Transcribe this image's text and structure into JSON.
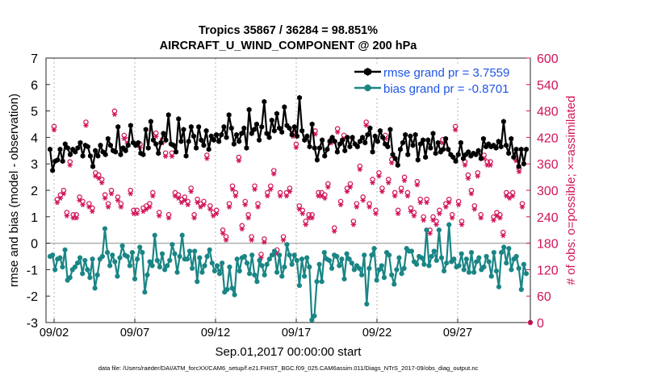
{
  "chart_data": {
    "type": "line",
    "title": "Tropics 35867 / 36284 = 98.851%",
    "subtitle": "AIRCRAFT_U_WIND_COMPONENT @ 200 hPa",
    "xlabel": "Sep.01,2017 00:00:00 start",
    "ylabel": "rmse and bias (model - observation)",
    "ylabel_right": "# of obs: o=possible; ×=assimilated",
    "footnote": "data file: /Users/raeder/DAI/ATM_forcXX/CAM6_setup/f.e21.FHIST_BGC.f09_025.CAM6assim.011/Diags_NTrS_2017-09/obs_diag_output.nc",
    "xlim": [
      1.5,
      31.5
    ],
    "ylim": [
      -3,
      7
    ],
    "ylim_right": [
      0,
      600
    ],
    "yticks": [
      -3,
      -2,
      -1,
      0,
      1,
      2,
      3,
      4,
      5,
      6,
      7
    ],
    "yticks_right": [
      0,
      60,
      120,
      180,
      240,
      300,
      360,
      420,
      480,
      540,
      600
    ],
    "xticks": [
      2,
      7,
      12,
      17,
      22,
      27
    ],
    "xtick_labels": [
      "09/02",
      "09/07",
      "09/12",
      "09/17",
      "09/22",
      "09/27"
    ],
    "zero_line": 0,
    "legend": [
      {
        "label": "rmse grand pr = 3.7559",
        "color": "#000000"
      },
      {
        "label": "bias grand pr = -0.8701",
        "color": "#1a8585"
      }
    ],
    "series": [
      {
        "name": "rmse",
        "color": "#000000",
        "marker": "hexagon",
        "values": [
          3.55,
          2.75,
          3.1,
          3.15,
          3.55,
          3.1,
          3.75,
          3.6,
          3.35,
          3.55,
          3.45,
          3.6,
          3.8,
          3.3,
          3.7,
          3.65,
          3.3,
          2.9,
          3.5,
          3.3,
          3.7,
          3.45,
          3.35,
          3.95,
          3.7,
          3.5,
          3.45,
          4.4,
          3.35,
          3.6,
          3.5,
          3.7,
          4.45,
          3.8,
          3.7,
          3.8,
          3.4,
          3.35,
          4.3,
          3.6,
          4.6,
          3.9,
          3.75,
          3.4,
          3.8,
          4.15,
          3.9,
          4.85,
          3.75,
          3.7,
          3.45,
          4.7,
          3.85,
          4.3,
          3.3,
          3.85,
          4.4,
          4.05,
          3.6,
          4.4,
          3.9,
          3.7,
          4.25,
          3.55,
          4.05,
          3.9,
          4.1,
          3.85,
          4.1,
          4.4,
          4.0,
          4.85,
          4.35,
          3.75,
          4.1,
          3.85,
          4.15,
          4.35,
          3.6,
          5.05,
          4.15,
          4.3,
          4.5,
          3.9,
          4.4,
          5.35,
          4.15,
          4.0,
          4.65,
          4.25,
          4.9,
          4.35,
          4.2,
          5.15,
          4.45,
          4.35,
          4.1,
          4.4,
          4.05,
          5.5,
          4.25,
          3.9,
          4.05,
          3.65,
          4.5,
          3.6,
          3.15,
          3.6,
          3.9,
          3.3,
          3.55,
          3.85,
          4.0,
          3.85,
          3.45,
          3.75,
          3.9,
          3.5,
          4.0,
          3.65,
          4.0,
          3.75,
          3.65,
          3.85,
          4.0,
          3.8,
          4.1,
          4.35,
          3.45,
          4.05,
          3.85,
          4.25,
          4.0,
          3.75,
          3.65,
          4.3,
          3.35,
          3.2,
          2.95,
          3.55,
          3.8,
          4.1,
          3.35,
          4.05,
          3.7,
          4.1,
          3.15,
          3.75,
          3.9,
          3.25,
          3.9,
          3.6,
          4.15,
          3.4,
          3.8,
          3.45,
          3.55,
          3.95,
          3.55,
          3.35,
          3.25,
          3.1,
          3.35,
          3.8,
          3.2,
          3.35,
          3.45,
          3.3,
          3.4,
          3.35,
          3.5,
          3.2,
          3.95,
          3.65,
          3.75,
          3.65,
          3.7,
          3.6,
          3.85,
          3.65,
          4.6,
          3.7,
          3.4,
          3.95,
          3.25,
          3.55,
          2.9,
          3.55,
          3.0,
          3.55
        ]
      },
      {
        "name": "bias",
        "color": "#1a8585",
        "marker": "circle",
        "values": [
          -0.5,
          -0.45,
          -1.0,
          -0.6,
          -0.55,
          -0.9,
          -0.25,
          -1.4,
          -1.3,
          -1.0,
          -0.9,
          -0.75,
          -0.55,
          -1.15,
          -0.65,
          -1.0,
          -1.3,
          -0.6,
          -1.7,
          -1.2,
          -0.6,
          -0.5,
          0.55,
          -0.35,
          -0.85,
          -0.45,
          -0.7,
          -1.25,
          -0.55,
          -0.1,
          -0.45,
          -0.5,
          -0.85,
          -0.35,
          -1.35,
          -0.6,
          -0.15,
          -0.35,
          -1.85,
          -1.2,
          -0.7,
          -0.85,
          0.3,
          -0.65,
          -0.9,
          -0.4,
          -1.0,
          -0.85,
          -0.65,
          -0.05,
          -0.4,
          -1.1,
          -0.5,
          0.3,
          -0.6,
          -0.6,
          -0.3,
          -0.95,
          -0.3,
          -1.45,
          -0.55,
          -1.1,
          -0.85,
          -0.5,
          -0.25,
          -0.75,
          -1.05,
          -0.85,
          -1.15,
          -0.75,
          -1.85,
          -1.75,
          -0.9,
          -1.7,
          -1.95,
          -0.6,
          -1.05,
          -0.55,
          -0.5,
          -0.75,
          -1.15,
          -0.45,
          -1.2,
          -1.45,
          -0.65,
          -0.85,
          -1.2,
          -0.8,
          -0.6,
          -0.45,
          -0.3,
          -1.1,
          -0.45,
          -1.25,
          -0.9,
          -0.05,
          -0.45,
          -0.8,
          -0.45,
          -0.65,
          -1.6,
          -0.6,
          -1.25,
          -0.55,
          -0.9,
          -2.9,
          -2.75,
          -1.45,
          -0.8,
          -1.45,
          -0.35,
          -0.6,
          -0.65,
          -0.95,
          -0.45,
          -0.5,
          -0.85,
          -0.6,
          -1.35,
          -0.4,
          -0.6,
          -0.75,
          -1.0,
          -0.85,
          -0.95,
          -1.2,
          -0.45,
          -2.3,
          -0.95,
          -0.45,
          -0.2,
          -1.4,
          -1.0,
          -0.85,
          -1.3,
          -0.35,
          -0.45,
          -1.2,
          -1.55,
          -1.0,
          -0.55,
          -1.15,
          -0.95,
          -0.2,
          -0.3,
          -0.3,
          -0.7,
          -0.8,
          -0.5,
          -0.55,
          -0.8,
          0.5,
          -0.85,
          -0.5,
          -0.3,
          -0.65,
          0.5,
          -0.55,
          -1.05,
          -0.75,
          0.7,
          -0.7,
          -0.6,
          -0.9,
          -0.85,
          -0.4,
          -1.0,
          -0.6,
          -1.1,
          -0.35,
          -1.1,
          -0.7,
          -0.55,
          -1.0,
          -0.9,
          -0.5,
          -0.7,
          -1.25,
          -0.35,
          -1.05,
          -1.65,
          -0.35,
          -0.15,
          -0.75,
          -0.2,
          -1.0,
          -0.6,
          -0.5,
          -0.95,
          -1.75,
          -0.8,
          -1.15
        ]
      }
    ],
    "obs_counts": [
      440,
      275,
      285,
      295,
      245,
      360,
      240,
      240,
      280,
      270,
      450,
      265,
      255,
      335,
      330,
      320,
      285,
      265,
      295,
      475,
      280,
      265,
      420,
      410,
      295,
      250,
      250,
      400,
      255,
      260,
      265,
      290,
      425,
      245,
      410,
      380,
      240,
      380,
      290,
      285,
      275,
      280,
      270,
      300,
      240,
      275,
      265,
      270,
      375,
      260,
      245,
      250,
      120,
      205,
      190,
      265,
      305,
      290,
      370,
      215,
      270,
      240,
      190,
      305,
      265,
      150,
      185,
      290,
      305,
      340,
      160,
      290,
      190,
      290,
      300,
      425,
      400,
      260,
      250,
      225,
      240,
      240,
      430,
      290,
      290,
      285,
      310,
      410,
      210,
      435,
      270,
      420,
      300,
      310,
      225,
      265,
      350,
      280,
      450,
      265,
      320,
      250,
      335,
      300,
      420,
      320,
      365,
      290,
      250,
      300,
      325,
      290,
      255,
      245,
      315,
      275,
      235,
      275,
      205,
      235,
      225,
      250,
      410,
      265,
      275,
      240,
      440,
      270,
      225,
      360,
      330,
      295,
      260,
      335,
      240,
      375,
      360,
      360,
      235,
      245,
      240,
      200,
      290,
      285,
      290,
      370,
      345,
      265
    ]
  }
}
